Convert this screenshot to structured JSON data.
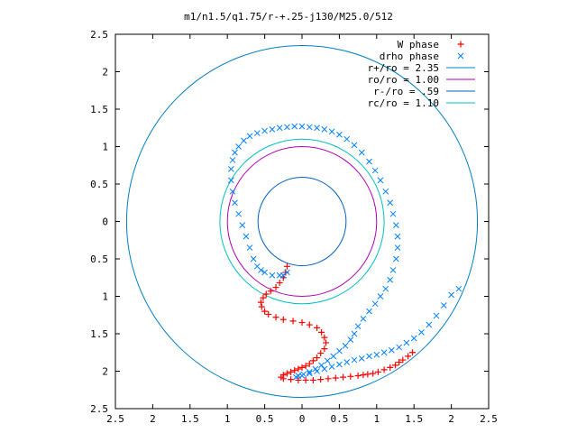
{
  "chart_data": {
    "type": "scatter",
    "title": "m1/n1.5/q1.75/r-+.25-j130/M25.0/512",
    "xlim": [
      -2.5,
      2.5
    ],
    "ylim": [
      -2.5,
      2.5
    ],
    "xticks": [
      -2.5,
      -2,
      -1.5,
      -1,
      -0.5,
      0,
      0.5,
      1,
      1.5,
      2,
      2.5
    ],
    "yticks": [
      -2.5,
      -2,
      -1.5,
      -1,
      -0.5,
      0,
      0.5,
      1,
      1.5,
      2,
      2.5
    ],
    "xtick_labels": [
      "2.5",
      "2",
      "1.5",
      "1",
      "0.5",
      "0",
      "0.5",
      "1",
      "1.5",
      "2",
      "2.5"
    ],
    "ytick_labels": [
      "2.5",
      "2",
      "1.5",
      "1",
      "0.5",
      "0",
      "0.5",
      "1",
      "1.5",
      "2",
      "2.5"
    ],
    "grid": false,
    "legend_position": "top-right",
    "legend": [
      {
        "label": "W phase",
        "kind": "plus",
        "color": "#ff0000"
      },
      {
        "label": "drho phase",
        "kind": "cross",
        "color": "#0080ff"
      },
      {
        "label": "r+/ro = 2.35",
        "kind": "line",
        "color": "#0080c0"
      },
      {
        "label": "ro/ro = 1.00",
        "kind": "line",
        "color": "#b000b0"
      },
      {
        "label": "r-/ro = .59",
        "kind": "line",
        "color": "#0060c0"
      },
      {
        "label": "rc/ro = 1.10",
        "kind": "line",
        "color": "#00c0c0"
      }
    ],
    "circles": [
      {
        "name": "r+/ro = 2.35",
        "radius": 2.35,
        "color": "#0080c0"
      },
      {
        "name": "ro/ro = 1.00",
        "radius": 1.0,
        "color": "#b000b0"
      },
      {
        "name": "r-/ro = .59",
        "radius": 0.59,
        "color": "#0060c0"
      },
      {
        "name": "rc/ro = 1.10",
        "radius": 1.1,
        "color": "#00c0c0"
      }
    ],
    "series": [
      {
        "name": "W phase",
        "marker": "plus",
        "color": "#ff0000",
        "x": [
          -0.2,
          -0.22,
          -0.25,
          -0.3,
          -0.35,
          -0.42,
          -0.48,
          -0.52,
          -0.55,
          -0.54,
          -0.5,
          -0.45,
          -0.35,
          -0.25,
          -0.12,
          0.0,
          0.1,
          0.2,
          0.26,
          0.3,
          0.32,
          0.3,
          0.25,
          0.2,
          0.15,
          0.1,
          0.05,
          0.0,
          -0.05,
          -0.1,
          -0.15,
          -0.2,
          -0.25,
          -0.28,
          -0.25,
          -0.15,
          -0.05,
          0.05,
          0.15,
          0.25,
          0.35,
          0.45,
          0.55,
          0.65,
          0.75,
          0.82,
          0.88,
          0.95,
          1.02,
          1.1,
          1.18,
          1.25,
          1.3,
          1.35,
          1.42,
          1.48
        ],
        "y": [
          -0.6,
          -0.68,
          -0.75,
          -0.82,
          -0.88,
          -0.93,
          -0.97,
          -1.02,
          -1.08,
          -1.14,
          -1.2,
          -1.24,
          -1.28,
          -1.31,
          -1.33,
          -1.35,
          -1.38,
          -1.42,
          -1.48,
          -1.55,
          -1.62,
          -1.7,
          -1.76,
          -1.82,
          -1.86,
          -1.9,
          -1.93,
          -1.95,
          -1.97,
          -1.99,
          -2.01,
          -2.03,
          -2.05,
          -2.08,
          -2.1,
          -2.11,
          -2.12,
          -2.12,
          -2.12,
          -2.11,
          -2.1,
          -2.09,
          -2.08,
          -2.07,
          -2.06,
          -2.05,
          -2.04,
          -2.03,
          -2.01,
          -1.98,
          -1.95,
          -1.92,
          -1.88,
          -1.85,
          -1.8,
          -1.75
        ]
      },
      {
        "name": "drho phase",
        "marker": "cross",
        "color": "#0080ff",
        "x": [
          -0.2,
          -0.25,
          -0.3,
          -0.4,
          -0.5,
          -0.55,
          -0.6,
          -0.65,
          -0.7,
          -0.75,
          -0.8,
          -0.85,
          -0.9,
          -0.93,
          -0.95,
          -0.95,
          -0.93,
          -0.9,
          -0.85,
          -0.78,
          -0.7,
          -0.6,
          -0.5,
          -0.4,
          -0.3,
          -0.2,
          -0.1,
          0.0,
          0.1,
          0.2,
          0.3,
          0.4,
          0.5,
          0.6,
          0.7,
          0.8,
          0.9,
          0.98,
          1.05,
          1.12,
          1.18,
          1.22,
          1.26,
          1.28,
          1.28,
          1.26,
          1.22,
          1.18,
          1.12,
          1.05,
          0.98,
          0.9,
          0.82,
          0.75,
          0.7,
          0.65,
          0.58,
          0.5,
          0.42,
          0.34,
          0.26,
          0.18,
          0.1,
          0.02,
          -0.05,
          -0.08,
          0.0,
          0.1,
          0.2,
          0.3,
          0.4,
          0.5,
          0.6,
          0.7,
          0.8,
          0.9,
          1.0,
          1.1,
          1.2,
          1.3,
          1.4,
          1.5,
          1.6,
          1.7,
          1.8,
          1.9,
          2.0,
          2.1
        ],
        "y": [
          -0.68,
          -0.72,
          -0.72,
          -0.72,
          -0.68,
          -0.65,
          -0.6,
          -0.5,
          -0.35,
          -0.2,
          -0.05,
          0.1,
          0.25,
          0.4,
          0.55,
          0.7,
          0.82,
          0.92,
          1.0,
          1.08,
          1.14,
          1.18,
          1.21,
          1.23,
          1.25,
          1.26,
          1.27,
          1.27,
          1.26,
          1.25,
          1.23,
          1.2,
          1.16,
          1.1,
          1.02,
          0.92,
          0.8,
          0.68,
          0.55,
          0.4,
          0.25,
          0.1,
          -0.05,
          -0.2,
          -0.35,
          -0.5,
          -0.65,
          -0.78,
          -0.9,
          -1.0,
          -1.1,
          -1.2,
          -1.3,
          -1.4,
          -1.5,
          -1.58,
          -1.66,
          -1.73,
          -1.8,
          -1.86,
          -1.92,
          -1.97,
          -2.01,
          -2.04,
          -2.06,
          -2.08,
          -2.06,
          -2.03,
          -2.0,
          -1.97,
          -1.94,
          -1.91,
          -1.88,
          -1.85,
          -1.83,
          -1.8,
          -1.78,
          -1.75,
          -1.72,
          -1.68,
          -1.62,
          -1.56,
          -1.48,
          -1.38,
          -1.26,
          -1.12,
          -0.98,
          -0.9
        ]
      }
    ]
  }
}
